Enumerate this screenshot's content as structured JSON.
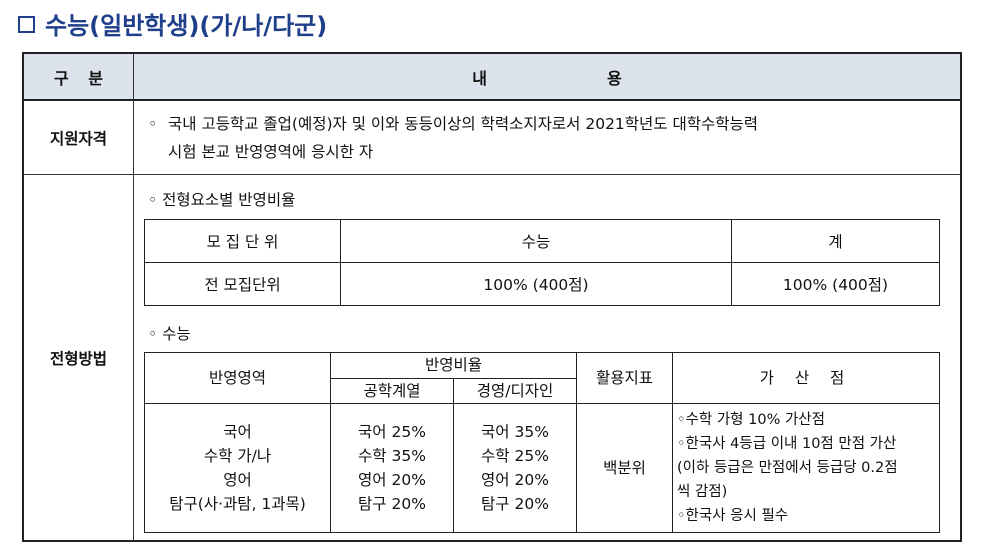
{
  "title": "수능(일반학생)(가/나/다군)",
  "header": {
    "col1": "구  분",
    "col2_a": "내",
    "col2_b": "용"
  },
  "row_eligibility": {
    "label": "지원자격",
    "bullet": "◦",
    "line1": "국내 고등학교 졸업(예정)자 및 이와 동등이상의 학력소지자로서 2021학년도 대학수학능력",
    "line2": "시험 본교 반영영역에 응시한 자"
  },
  "row_method": {
    "label": "전형방법",
    "section1": "◦  전형요소별 반영비율",
    "table1": {
      "headers": [
        "모 집 단 위",
        "수능",
        "계"
      ],
      "row": [
        "전 모집단위",
        "100% (400점)",
        "100% (400점)"
      ]
    },
    "section2": "◦  수능",
    "table2": {
      "h_area": "반영영역",
      "h_ratio": "반영비율",
      "h_eng": "공학계열",
      "h_biz": "경영/디자인",
      "h_index": "활용지표",
      "h_bonus": "가 산 점",
      "areas": [
        "국어",
        "수학 가/나",
        "영어",
        "탐구(사·과탐, 1과목)"
      ],
      "eng": [
        "국어 25%",
        "수학 35%",
        "영어 20%",
        "탐구 20%"
      ],
      "biz": [
        "국어 35%",
        "수학 25%",
        "영어 20%",
        "탐구 20%"
      ],
      "index": "백분위",
      "bonus": [
        "◦수학 가형 10% 가산점",
        "◦한국사 4등급 이내 10점 만점 가산",
        " (이하 등급은 만점에서 등급당 0.2점",
        " 씩 감점)",
        "◦한국사 응시 필수"
      ]
    }
  }
}
